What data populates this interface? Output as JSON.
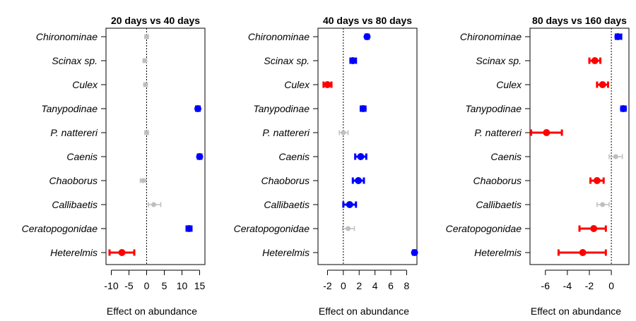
{
  "colors": {
    "negative": "#ff0000",
    "positive": "#0000ff",
    "nonsignificant": "#bebebe",
    "axis": "#000000"
  },
  "chart_data": [
    {
      "type": "scatter",
      "title": "20 days vs 40 days",
      "xlabel": "Effect on abundance",
      "xlim": [
        -11.5,
        16.5
      ],
      "xticks": [
        -10,
        -5,
        0,
        5,
        10,
        15
      ],
      "xtick_labels": [
        "-10",
        "-5",
        "0",
        "5",
        "10",
        "15"
      ],
      "reference_line": 0,
      "categories": [
        "Chironominae",
        "Scinax sp.",
        "Culex",
        "Tanypodinae",
        "P. nattereri",
        "Caenis",
        "Chaoborus",
        "Callibaetis",
        "Ceratopogonidae",
        "Heterelmis"
      ],
      "estimates": [
        0.0,
        -0.5,
        -0.3,
        14.5,
        0.0,
        15.0,
        -1.0,
        2.0,
        12.0,
        -7.0
      ],
      "lower": [
        -0.5,
        -1.0,
        -0.8,
        14.0,
        -0.5,
        14.5,
        -1.8,
        0.5,
        11.3,
        -10.5
      ],
      "upper": [
        0.5,
        0.0,
        0.2,
        15.0,
        0.5,
        15.5,
        -0.2,
        4.0,
        12.7,
        -3.5
      ],
      "effect": [
        "ns",
        "ns",
        "ns",
        "positive",
        "ns",
        "positive",
        "ns",
        "ns",
        "positive",
        "negative"
      ]
    },
    {
      "type": "scatter",
      "title": "40 days vs 80 days",
      "xlabel": "Effect on abundance",
      "xlim": [
        -3.2,
        9.3
      ],
      "xticks": [
        -2,
        0,
        2,
        4,
        6,
        8
      ],
      "xtick_labels": [
        "-2",
        "0",
        "2",
        "4",
        "6",
        "8"
      ],
      "reference_line": 0,
      "categories": [
        "Chironominae",
        "Scinax sp.",
        "Culex",
        "Tanypodinae",
        "P. nattereri",
        "Caenis",
        "Chaoborus",
        "Callibaetis",
        "Ceratopogonidae",
        "Heterelmis"
      ],
      "estimates": [
        3.0,
        1.2,
        -2.0,
        2.5,
        0.0,
        2.2,
        1.9,
        0.8,
        0.6,
        9.0
      ],
      "lower": [
        2.8,
        0.9,
        -2.5,
        2.2,
        -0.5,
        1.5,
        1.2,
        0.0,
        -0.1,
        8.8
      ],
      "upper": [
        3.2,
        1.6,
        -1.5,
        2.8,
        0.6,
        2.9,
        2.6,
        1.6,
        1.4,
        9.2
      ],
      "effect": [
        "positive",
        "positive",
        "negative",
        "positive",
        "ns",
        "positive",
        "positive",
        "positive",
        "ns",
        "positive"
      ]
    },
    {
      "type": "scatter",
      "title": "80 days vs 160 days",
      "xlabel": "Effect on abundance",
      "xlim": [
        -7.4,
        1.6
      ],
      "xticks": [
        -6,
        -4,
        -2,
        0
      ],
      "xtick_labels": [
        "-6",
        "-4",
        "-2",
        "0"
      ],
      "reference_line": 0,
      "categories": [
        "Chironominae",
        "Scinax sp.",
        "Culex",
        "Tanypodinae",
        "P. nattereri",
        "Caenis",
        "Chaoborus",
        "Callibaetis",
        "Ceratopogonidae",
        "Heterelmis"
      ],
      "estimates": [
        0.6,
        -1.5,
        -0.8,
        1.1,
        -5.9,
        0.4,
        -1.3,
        -0.8,
        -1.6,
        -2.6
      ],
      "lower": [
        0.4,
        -2.0,
        -1.3,
        0.9,
        -7.3,
        -0.2,
        -1.9,
        -1.3,
        -2.9,
        -4.8
      ],
      "upper": [
        0.9,
        -1.0,
        -0.3,
        1.3,
        -4.5,
        1.0,
        -0.7,
        -0.2,
        -0.5,
        -0.5
      ],
      "effect": [
        "positive",
        "negative",
        "negative",
        "positive",
        "negative",
        "ns",
        "negative",
        "ns",
        "negative",
        "negative"
      ]
    }
  ]
}
